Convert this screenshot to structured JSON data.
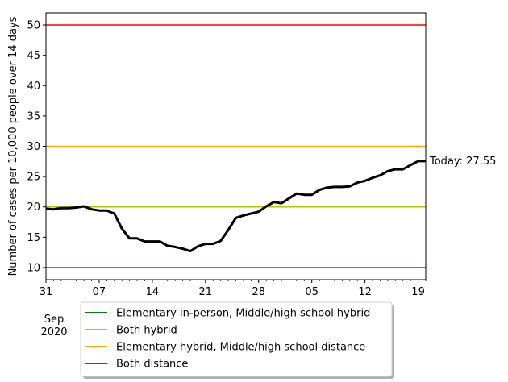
{
  "chart_data": {
    "type": "line",
    "ylabel": "Number of cases per 10,000 people over 14 days",
    "ylim": [
      8,
      52
    ],
    "yticks": [
      10,
      15,
      20,
      25,
      30,
      35,
      40,
      45,
      50
    ],
    "x_start": "2020-08-31",
    "x_end": "2020-10-20",
    "xtick_labels": [
      {
        "date": "2020-08-31",
        "label": "31"
      },
      {
        "date": "2020-09-07",
        "label": "07"
      },
      {
        "date": "2020-09-14",
        "label": "14"
      },
      {
        "date": "2020-09-21",
        "label": "21"
      },
      {
        "date": "2020-09-28",
        "label": "28"
      },
      {
        "date": "2020-10-05",
        "label": "05"
      },
      {
        "date": "2020-10-12",
        "label": "12"
      },
      {
        "date": "2020-10-19",
        "label": "19"
      }
    ],
    "month_label": "Sep",
    "year_label": "2020",
    "series": [
      {
        "color": "#000000",
        "x": [
          "2020-08-31",
          "2020-09-01",
          "2020-09-02",
          "2020-09-03",
          "2020-09-04",
          "2020-09-05",
          "2020-09-06",
          "2020-09-07",
          "2020-09-08",
          "2020-09-09",
          "2020-09-10",
          "2020-09-11",
          "2020-09-12",
          "2020-09-13",
          "2020-09-14",
          "2020-09-15",
          "2020-09-16",
          "2020-09-17",
          "2020-09-18",
          "2020-09-19",
          "2020-09-20",
          "2020-09-21",
          "2020-09-22",
          "2020-09-23",
          "2020-09-24",
          "2020-09-25",
          "2020-09-26",
          "2020-09-27",
          "2020-09-28",
          "2020-09-29",
          "2020-09-30",
          "2020-10-01",
          "2020-10-02",
          "2020-10-03",
          "2020-10-04",
          "2020-10-05",
          "2020-10-06",
          "2020-10-07",
          "2020-10-08",
          "2020-10-09",
          "2020-10-10",
          "2020-10-11",
          "2020-10-12",
          "2020-10-13",
          "2020-10-14",
          "2020-10-15",
          "2020-10-16",
          "2020-10-17",
          "2020-10-18",
          "2020-10-19",
          "2020-10-20"
        ],
        "values": [
          19.7,
          19.6,
          19.8,
          19.8,
          19.9,
          20.1,
          19.6,
          19.4,
          19.4,
          18.9,
          16.4,
          14.8,
          14.8,
          14.3,
          14.3,
          14.3,
          13.6,
          13.4,
          13.1,
          12.7,
          13.5,
          13.9,
          13.9,
          14.4,
          16.2,
          18.2,
          18.6,
          18.9,
          19.2,
          20.1,
          20.8,
          20.6,
          21.4,
          22.2,
          22.0,
          22.0,
          22.8,
          23.2,
          23.3,
          23.3,
          23.4,
          24.0,
          24.3,
          24.8,
          25.2,
          25.9,
          26.2,
          26.2,
          26.9,
          27.55,
          27.55
        ]
      }
    ],
    "annotation": "Today: 27.55",
    "thresholds": [
      {
        "name": "Elementary in-person, Middle/high school hybrid",
        "value": 10,
        "color": "#008000"
      },
      {
        "name": "Both hybrid",
        "value": 20,
        "color": "#bfbf00"
      },
      {
        "name": "Elementary hybrid, Middle/high school distance",
        "value": 30,
        "color": "#ffa500"
      },
      {
        "name": "Both distance",
        "value": 50,
        "color": "#ff0000"
      }
    ],
    "legend_position": "below"
  }
}
